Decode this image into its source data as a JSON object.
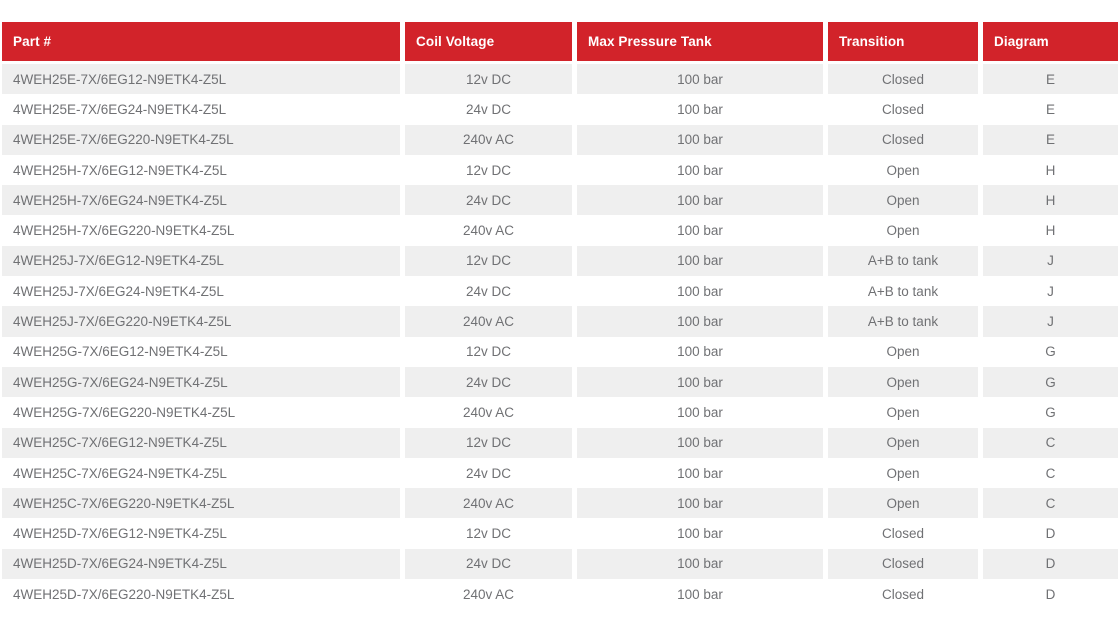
{
  "colors": {
    "header_bg": "#d2232a",
    "header_text": "#ffffff",
    "stripe_bg": "#efefef",
    "row_text": "#707174"
  },
  "table": {
    "columns": [
      {
        "label": "Part #"
      },
      {
        "label": "Coil Voltage"
      },
      {
        "label": "Max Pressure Tank"
      },
      {
        "label": "Transition"
      },
      {
        "label": "Diagram"
      }
    ],
    "rows": [
      {
        "cells": [
          "4WEH25E-7X/6EG12-N9ETK4-Z5L",
          "12v DC",
          "100 bar",
          "Closed",
          "E"
        ]
      },
      {
        "cells": [
          "4WEH25E-7X/6EG24-N9ETK4-Z5L",
          "24v DC",
          "100 bar",
          "Closed",
          "E"
        ]
      },
      {
        "cells": [
          "4WEH25E-7X/6EG220-N9ETK4-Z5L",
          "240v AC",
          "100 bar",
          "Closed",
          "E"
        ]
      },
      {
        "cells": [
          "4WEH25H-7X/6EG12-N9ETK4-Z5L",
          "12v DC",
          "100 bar",
          "Open",
          "H"
        ]
      },
      {
        "cells": [
          "4WEH25H-7X/6EG24-N9ETK4-Z5L",
          "24v DC",
          "100 bar",
          "Open",
          "H"
        ]
      },
      {
        "cells": [
          "4WEH25H-7X/6EG220-N9ETK4-Z5L",
          "240v AC",
          "100 bar",
          "Open",
          "H"
        ]
      },
      {
        "cells": [
          "4WEH25J-7X/6EG12-N9ETK4-Z5L",
          "12v DC",
          "100 bar",
          "A+B to tank",
          "J"
        ]
      },
      {
        "cells": [
          "4WEH25J-7X/6EG24-N9ETK4-Z5L",
          "24v DC",
          "100 bar",
          "A+B to tank",
          "J"
        ]
      },
      {
        "cells": [
          "4WEH25J-7X/6EG220-N9ETK4-Z5L",
          "240v AC",
          "100 bar",
          "A+B to tank",
          "J"
        ]
      },
      {
        "cells": [
          "4WEH25G-7X/6EG12-N9ETK4-Z5L",
          "12v DC",
          "100 bar",
          "Open",
          "G"
        ]
      },
      {
        "cells": [
          "4WEH25G-7X/6EG24-N9ETK4-Z5L",
          "24v DC",
          "100 bar",
          "Open",
          "G"
        ]
      },
      {
        "cells": [
          "4WEH25G-7X/6EG220-N9ETK4-Z5L",
          "240v AC",
          "100 bar",
          "Open",
          "G"
        ]
      },
      {
        "cells": [
          "4WEH25C-7X/6EG12-N9ETK4-Z5L",
          "12v DC",
          "100 bar",
          "Open",
          "C"
        ]
      },
      {
        "cells": [
          "4WEH25C-7X/6EG24-N9ETK4-Z5L",
          "24v DC",
          "100 bar",
          "Open",
          "C"
        ]
      },
      {
        "cells": [
          "4WEH25C-7X/6EG220-N9ETK4-Z5L",
          "240v AC",
          "100 bar",
          "Open",
          "C"
        ]
      },
      {
        "cells": [
          "4WEH25D-7X/6EG12-N9ETK4-Z5L",
          "12v DC",
          "100 bar",
          "Closed",
          "D"
        ]
      },
      {
        "cells": [
          "4WEH25D-7X/6EG24-N9ETK4-Z5L",
          "24v DC",
          "100 bar",
          "Closed",
          "D"
        ]
      },
      {
        "cells": [
          "4WEH25D-7X/6EG220-N9ETK4-Z5L",
          "240v AC",
          "100 bar",
          "Closed",
          "D"
        ]
      }
    ]
  }
}
